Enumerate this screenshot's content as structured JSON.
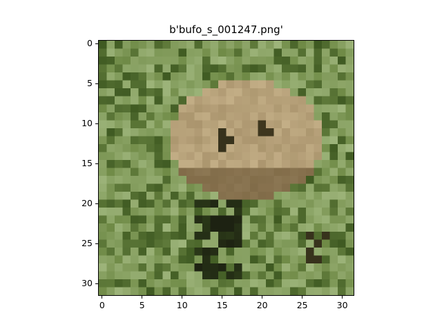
{
  "title": "b'bufo_s_001247.png'",
  "image": {
    "subject": "toad (bufo) in green foliage",
    "palette": {
      "foliage_dark": "#3f5a22",
      "foliage_mid": "#6f8a46",
      "foliage_light": "#9db47a",
      "toad_light": "#c3ae86",
      "toad_mid": "#a58f68",
      "shadow": "#1d2212",
      "brown": "#5f4a2a"
    }
  },
  "axes": {
    "x_ticks": [
      "0",
      "5",
      "10",
      "15",
      "20",
      "25",
      "30"
    ],
    "y_ticks": [
      "0",
      "5",
      "10",
      "15",
      "20",
      "25",
      "30"
    ],
    "x_tick_values": [
      0,
      5,
      10,
      15,
      20,
      25,
      30
    ],
    "y_tick_values": [
      0,
      5,
      10,
      15,
      20,
      25,
      30
    ],
    "xlim": [
      -0.5,
      31.5
    ],
    "ylim": [
      31.5,
      -0.5
    ]
  }
}
